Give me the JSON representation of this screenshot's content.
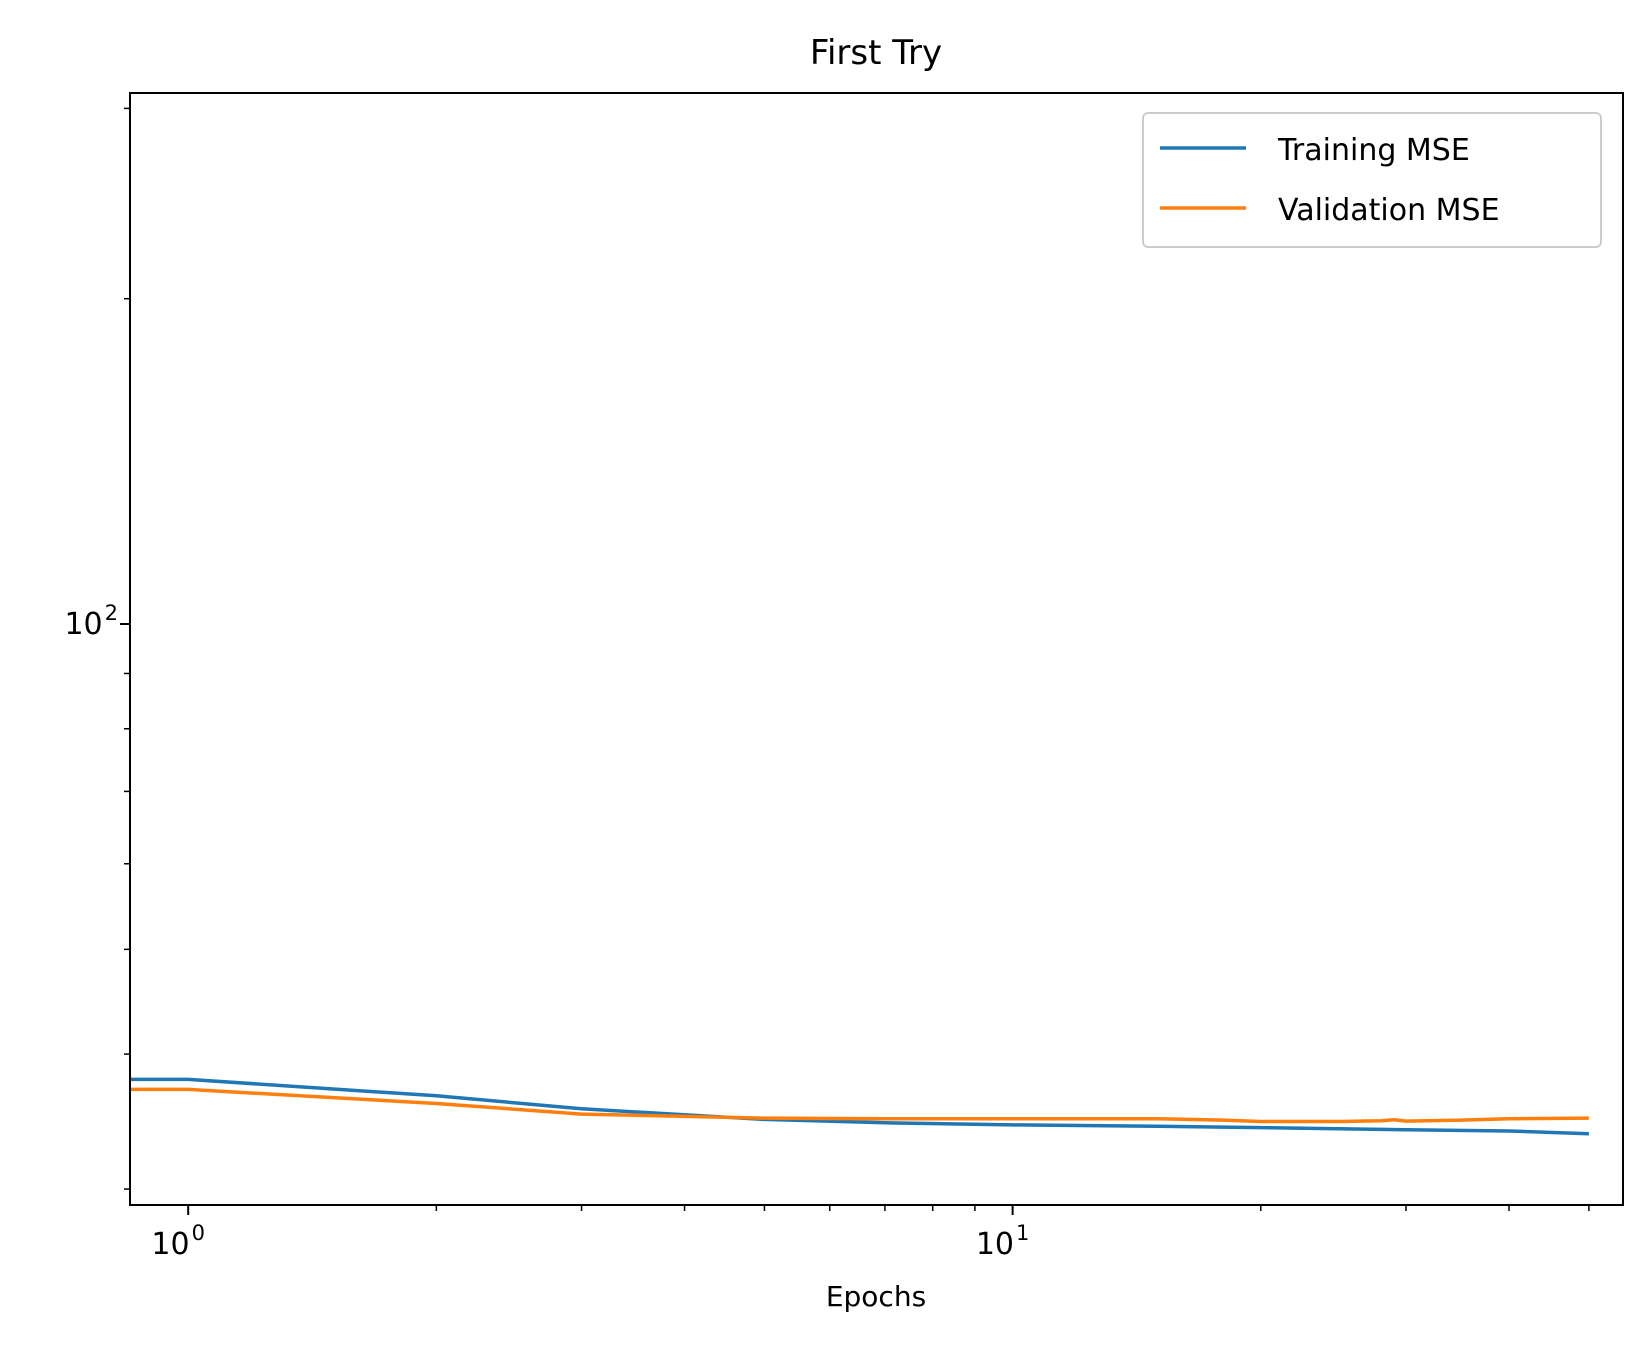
{
  "chart_data": {
    "type": "line",
    "title": "First Try",
    "xlabel": "Epochs",
    "ylabel": "",
    "xscale": "log",
    "yscale": "log",
    "xlim": [
      0.85,
      55
    ],
    "ylim": [
      29,
      310
    ],
    "grid": false,
    "legend": "top-right",
    "x_ticks": [
      {
        "value": 1,
        "base": "10",
        "exp": "0"
      },
      {
        "value": 10,
        "base": "10",
        "exp": "1"
      }
    ],
    "y_ticks": [
      {
        "value": 100,
        "base": "10",
        "exp": "2"
      }
    ],
    "series": [
      {
        "name": "Training MSE",
        "color": "#1f77b4",
        "points": [
          [
            0.85,
            37.9
          ],
          [
            1,
            37.9
          ],
          [
            2,
            36.6
          ],
          [
            3,
            35.6
          ],
          [
            5,
            34.8
          ],
          [
            7,
            34.55
          ],
          [
            10,
            34.4
          ],
          [
            15,
            34.3
          ],
          [
            20,
            34.2
          ],
          [
            30,
            34.05
          ],
          [
            40,
            33.95
          ],
          [
            50,
            33.75
          ]
        ]
      },
      {
        "name": "Validation MSE",
        "color": "#ff7f0e",
        "points": [
          [
            0.85,
            37.1
          ],
          [
            1,
            37.1
          ],
          [
            2,
            36.0
          ],
          [
            3,
            35.2
          ],
          [
            5,
            34.9
          ],
          [
            7,
            34.85
          ],
          [
            10,
            34.85
          ],
          [
            15,
            34.85
          ],
          [
            18,
            34.75
          ],
          [
            20,
            34.65
          ],
          [
            25,
            34.65
          ],
          [
            28,
            34.7
          ],
          [
            29,
            34.78
          ],
          [
            30,
            34.68
          ],
          [
            35,
            34.75
          ],
          [
            40,
            34.85
          ],
          [
            50,
            34.9
          ]
        ]
      }
    ]
  }
}
